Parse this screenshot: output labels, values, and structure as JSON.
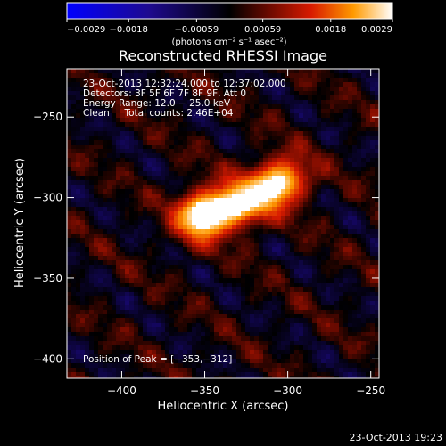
{
  "chart_data": {
    "type": "heatmap",
    "title": "Reconstructed RHESSI Image",
    "xlabel": "Heliocentric X (arcsec)",
    "ylabel": "Heliocentric Y (arcsec)",
    "xlim": [
      -433,
      -245
    ],
    "ylim": [
      -412,
      -220
    ],
    "x_ticks": [
      -400,
      -350,
      -300,
      -250
    ],
    "x_tick_labels": [
      "−400",
      "−350",
      "−300",
      "−250"
    ],
    "y_ticks": [
      -250,
      -300,
      -350,
      -400
    ],
    "y_tick_labels": [
      "−250",
      "−300",
      "−350",
      "−400"
    ],
    "colorbar": {
      "range": [
        -0.0029,
        0.0029
      ],
      "ticks": [
        -0.0029,
        -0.0018,
        -0.00059,
        0.00059,
        0.0018,
        0.0029
      ],
      "tick_labels": [
        "−0.0029",
        "−0.0018",
        "−0.00059",
        "0.00059",
        "0.0018",
        "0.0029"
      ],
      "units": "(photons cm⁻² s⁻¹ asec⁻²)",
      "colormap": "blue-black-red-yellow-white"
    },
    "annotations": {
      "time": "23-Oct-2013 12:32:24.000 to 12:37:02.000",
      "detectors": "Detectors: 3F 5F 6F 7F 8F 9F, Att 0",
      "energy": "Energy Range: 12.0 − 25.0 keV",
      "algorithm": "Clean     Total counts: 2.46E+04",
      "peak": "Position of Peak = [−353,−312]"
    },
    "sources": [
      {
        "x": -353,
        "y": -312,
        "peak": 0.0029
      },
      {
        "x": -333,
        "y": -305,
        "peak": 0.0022
      },
      {
        "x": -315,
        "y": -297,
        "peak": 0.002
      },
      {
        "x": -300,
        "y": -288,
        "peak": 0.0019
      }
    ],
    "footer": "23-Oct-2013 19:23"
  }
}
